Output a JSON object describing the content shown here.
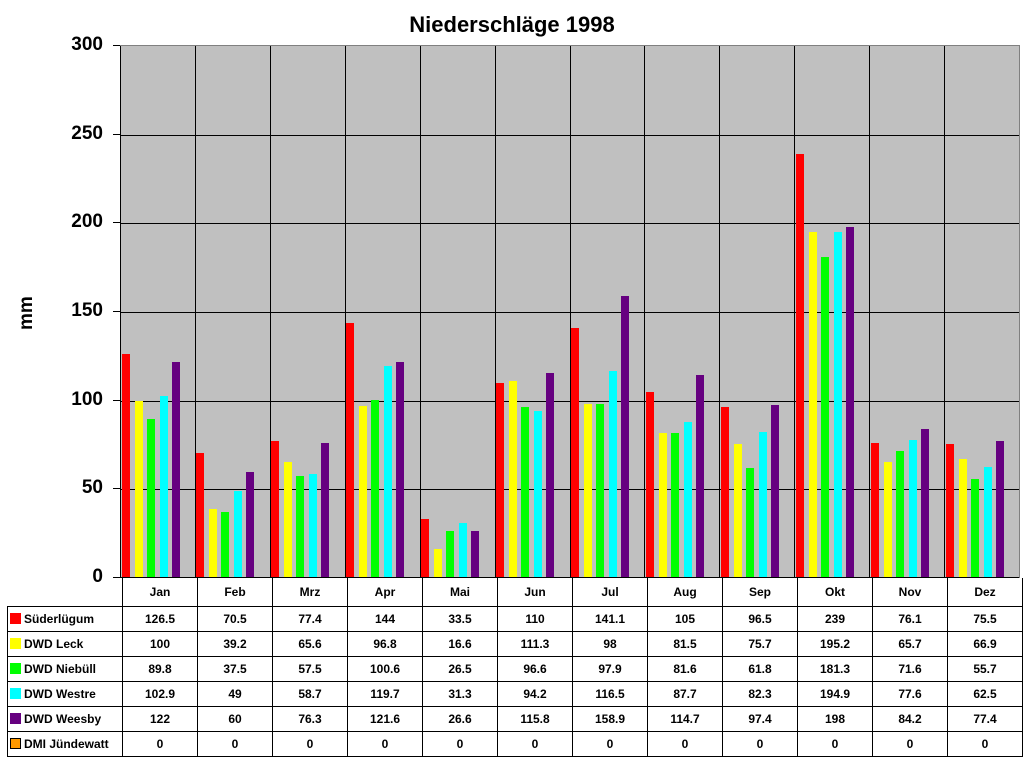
{
  "chart_data": {
    "type": "bar",
    "title": "Niederschläge 1998",
    "xlabel": "",
    "ylabel": "mm",
    "ylim": [
      0,
      300
    ],
    "yticks": [
      0,
      50,
      100,
      150,
      200,
      250,
      300
    ],
    "grid": true,
    "legend_position": "data-table-left",
    "categories": [
      "Jan",
      "Feb",
      "Mrz",
      "Apr",
      "Mai",
      "Jun",
      "Jul",
      "Aug",
      "Sep",
      "Okt",
      "Nov",
      "Dez"
    ],
    "series": [
      {
        "name": "Süderlügum",
        "color": "#ff0000",
        "values": [
          126.5,
          70.5,
          77.4,
          144,
          33.5,
          110,
          141.1,
          105,
          96.5,
          239,
          76.1,
          75.5
        ]
      },
      {
        "name": "DWD Leck",
        "color": "#ffff00",
        "values": [
          100,
          39.2,
          65.6,
          96.8,
          16.6,
          111.3,
          98,
          81.5,
          75.7,
          195.2,
          65.7,
          66.9
        ]
      },
      {
        "name": "DWD Niebüll",
        "color": "#00ff00",
        "values": [
          89.8,
          37.5,
          57.5,
          100.6,
          26.5,
          96.6,
          97.9,
          81.6,
          61.8,
          181.3,
          71.6,
          55.7
        ]
      },
      {
        "name": "DWD Westre",
        "color": "#00ffff",
        "values": [
          102.9,
          49,
          58.7,
          119.7,
          31.3,
          94.2,
          116.5,
          87.7,
          82.3,
          194.9,
          77.6,
          62.5
        ]
      },
      {
        "name": "DWD Weesby",
        "color": "#660080",
        "values": [
          122,
          60,
          76.3,
          121.6,
          26.6,
          115.8,
          158.9,
          114.7,
          97.4,
          198,
          84.2,
          77.4
        ]
      },
      {
        "name": "DMI Jündewatt",
        "color": "#ff9900",
        "values": [
          0,
          0,
          0,
          0,
          0,
          0,
          0,
          0,
          0,
          0,
          0,
          0
        ]
      }
    ]
  },
  "colors": {
    "plot_background": "#c0c0c0",
    "gridline": "#000000"
  }
}
